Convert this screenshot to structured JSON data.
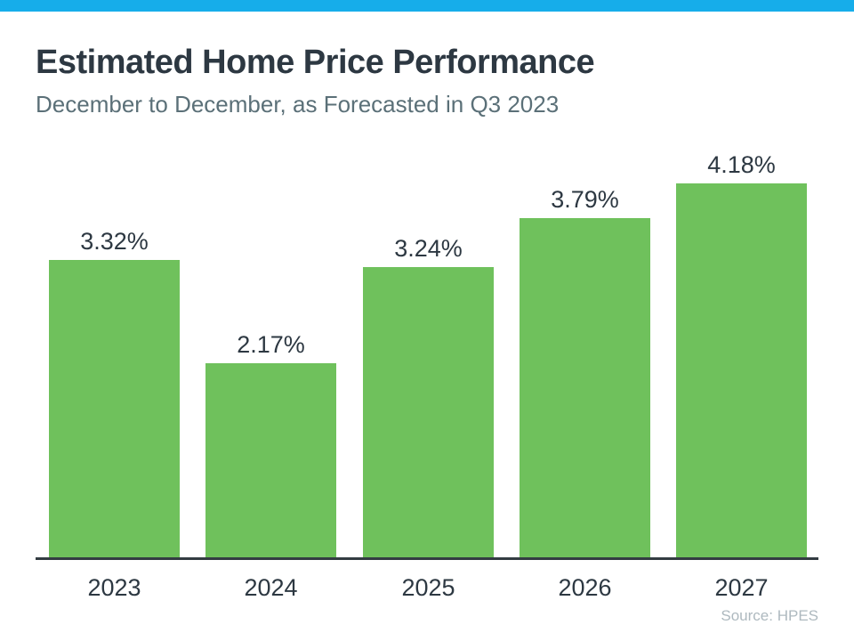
{
  "page": {
    "title": "Estimated Home Price Performance",
    "subtitle": "December to December, as Forecasted in Q3 2023",
    "source": "Source: HPES"
  },
  "colors": {
    "accent_bar": "#16ADEA",
    "bar_fill": "#6FC15C",
    "title_text": "#2D3842",
    "subtitle_text": "#5B7078",
    "axis_line": "#333C42",
    "source_text": "#AEB9BF"
  },
  "chart_data": {
    "type": "bar",
    "title": "Estimated Home Price Performance",
    "subtitle": "December to December, as Forecasted in Q3 2023",
    "categories": [
      "2023",
      "2024",
      "2025",
      "2026",
      "2027"
    ],
    "values": [
      3.32,
      2.17,
      3.24,
      3.79,
      4.18
    ],
    "value_labels": [
      "3.32%",
      "2.17%",
      "3.24%",
      "3.79%",
      "4.18%"
    ],
    "xlabel": "",
    "ylabel": "",
    "ylim": [
      0,
      4.5
    ],
    "grid": false,
    "legend": false,
    "bar_color": "#6FC15C",
    "source": "Source: HPES"
  }
}
